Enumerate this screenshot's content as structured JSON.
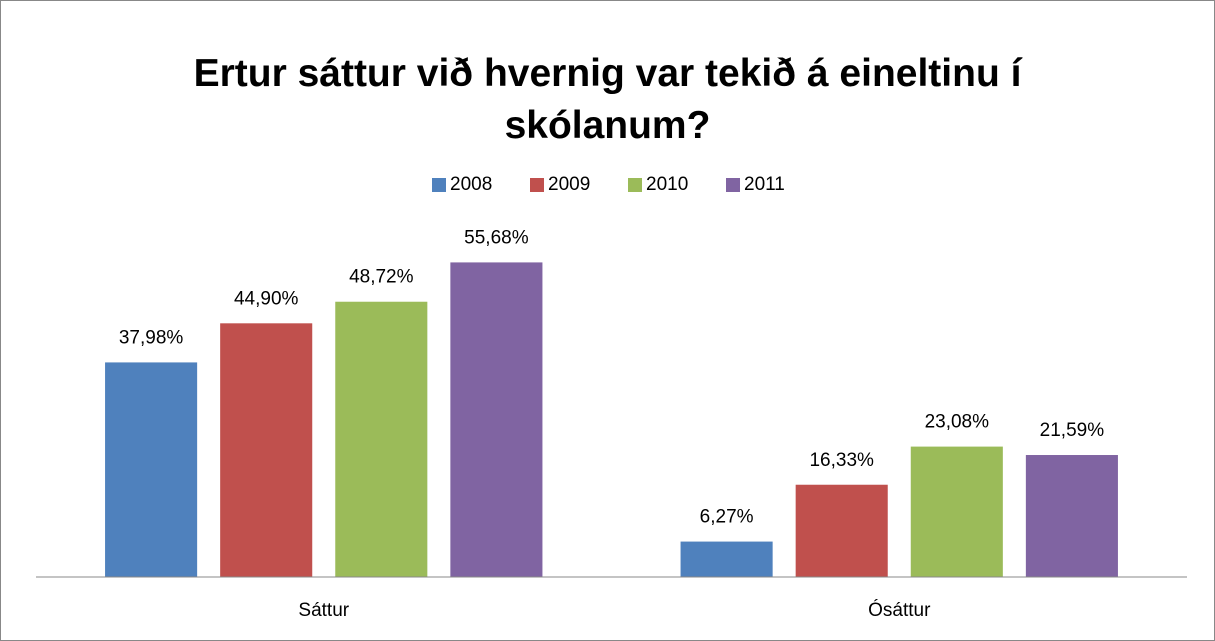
{
  "chart_data": {
    "type": "bar",
    "title": "Ertur sáttur við hvernig var tekið á eineltinu í skólanum?",
    "categories": [
      "Sáttur",
      "Ósáttur"
    ],
    "series": [
      {
        "name": "2008",
        "color": "#4f81bd",
        "values": [
          37.98,
          6.27
        ],
        "value_labels": [
          "37,98%",
          "6,27%"
        ]
      },
      {
        "name": "2009",
        "color": "#c0504d",
        "values": [
          44.9,
          16.33
        ],
        "value_labels": [
          "44,90%",
          "16,33%"
        ]
      },
      {
        "name": "2010",
        "color": "#9bbb59",
        "values": [
          48.72,
          23.08
        ],
        "value_labels": [
          "48,72%",
          "23,08%"
        ]
      },
      {
        "name": "2011",
        "color": "#8064a2",
        "values": [
          55.68,
          21.59
        ],
        "value_labels": [
          "55,68%",
          "21,59%"
        ]
      }
    ],
    "ylim": [
      0,
      60
    ],
    "legend": "top"
  }
}
